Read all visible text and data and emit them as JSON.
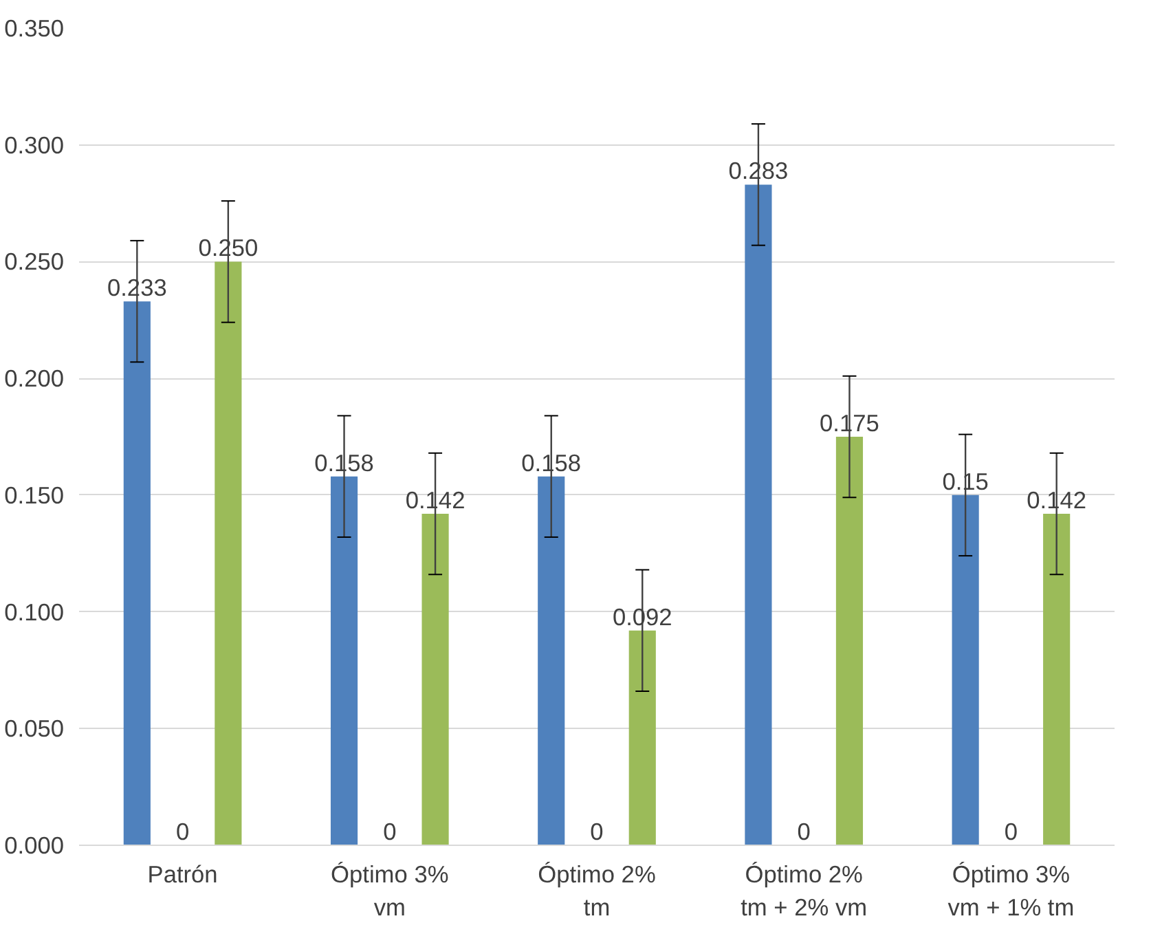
{
  "chart_data": {
    "type": "bar",
    "categories": [
      "Patrón",
      "Óptimo 3% vm",
      "Óptimo 2% tm",
      "Óptimo 2% tm + 2% vm",
      "Óptimo 3% vm + 1% tm"
    ],
    "series": [
      {
        "color": "#4f81bd",
        "values": [
          0.233,
          0.158,
          0.158,
          0.283,
          0.15
        ],
        "errors": [
          0.026,
          0.026,
          0.026,
          0.026,
          0.026
        ],
        "value_labels": [
          "0.233",
          "0.158",
          "0.158",
          "0.283",
          "0.15"
        ]
      },
      {
        "color": "#c0504d",
        "values": [
          0,
          0,
          0,
          0,
          0
        ],
        "value_labels": [
          "0",
          "0",
          "0",
          "0",
          "0"
        ]
      },
      {
        "color": "#9bbb59",
        "values": [
          0.25,
          0.142,
          0.092,
          0.175,
          0.142
        ],
        "errors": [
          0.026,
          0.026,
          0.026,
          0.026,
          0.026
        ],
        "value_labels": [
          "0.250",
          "0.142",
          "0.092",
          "0.175",
          "0.142"
        ]
      }
    ],
    "ylim": [
      0,
      0.35
    ],
    "yticks": [
      {
        "value": 0,
        "label": "0.000"
      },
      {
        "value": 0.05,
        "label": "0.050"
      },
      {
        "value": 0.1,
        "label": "0.100"
      },
      {
        "value": 0.15,
        "label": "0.150"
      },
      {
        "value": 0.2,
        "label": "0.200"
      },
      {
        "value": 0.25,
        "label": "0.250"
      },
      {
        "value": 0.3,
        "label": "0.300"
      },
      {
        "value": 0.35,
        "label": "0.350"
      }
    ],
    "grid": "y"
  }
}
